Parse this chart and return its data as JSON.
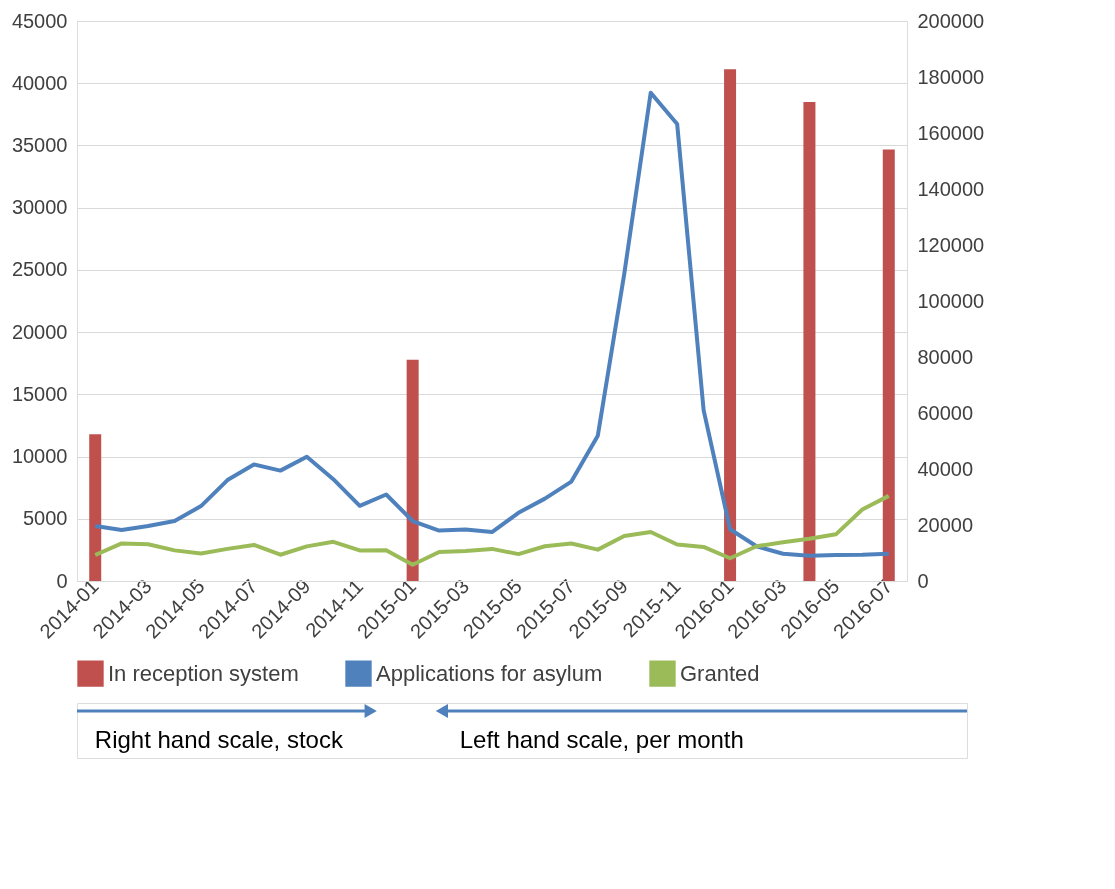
{
  "chart_data": {
    "type": "line",
    "categories": [
      "2014-01",
      null,
      "2014-03",
      null,
      "2014-05",
      null,
      "2014-07",
      null,
      "2014-09",
      null,
      "2014-11",
      null,
      "2015-01",
      null,
      "2015-03",
      null,
      "2015-05",
      null,
      "2015-07",
      null,
      "2015-09",
      null,
      "2015-11",
      null,
      "2016-01",
      null,
      "2016-03",
      null,
      "2016-05",
      null,
      "2016-07"
    ],
    "series": [
      {
        "name": "In reception system",
        "type": "bar",
        "axis": "y2",
        "color": "#c0504d",
        "values": [
          52400,
          null,
          null,
          null,
          null,
          null,
          null,
          null,
          null,
          null,
          null,
          null,
          79000,
          null,
          null,
          null,
          null,
          null,
          null,
          null,
          null,
          null,
          null,
          null,
          182800,
          null,
          null,
          171100,
          null,
          null,
          154100
        ]
      },
      {
        "name": "Applications for asylum",
        "color": "#4f81bd",
        "values": [
          4420,
          4100,
          4420,
          4820,
          6020,
          8110,
          9360,
          8870,
          9980,
          8180,
          6040,
          6950,
          4820,
          4050,
          4130,
          3930,
          5480,
          6620,
          7990,
          11680,
          24680,
          39230,
          36720,
          13730,
          4160,
          2790,
          2190,
          2030,
          2080,
          2110,
          2190
        ]
      },
      {
        "name": "Granted",
        "color": "#9bbb59",
        "values": [
          2090,
          3020,
          2950,
          2460,
          2210,
          2580,
          2900,
          2110,
          2780,
          3150,
          2460,
          2480,
          1300,
          2330,
          2410,
          2580,
          2160,
          2790,
          3010,
          2520,
          3610,
          3940,
          2930,
          2740,
          1830,
          2790,
          3120,
          3390,
          3750,
          5750,
          6840
        ]
      }
    ],
    "ylim": [
      0,
      45000
    ],
    "yticks": [
      0,
      5000,
      10000,
      15000,
      20000,
      25000,
      30000,
      35000,
      40000,
      45000
    ],
    "y2lim": [
      0,
      200000
    ],
    "y2ticks": [
      0,
      20000,
      40000,
      60000,
      80000,
      100000,
      120000,
      140000,
      160000,
      180000,
      200000
    ],
    "grid": "y",
    "legend": "bottom",
    "line_style": "solid",
    "marker": "none",
    "annotations": [
      "Right hand scale, stock",
      "Left hand scale, per month"
    ]
  }
}
